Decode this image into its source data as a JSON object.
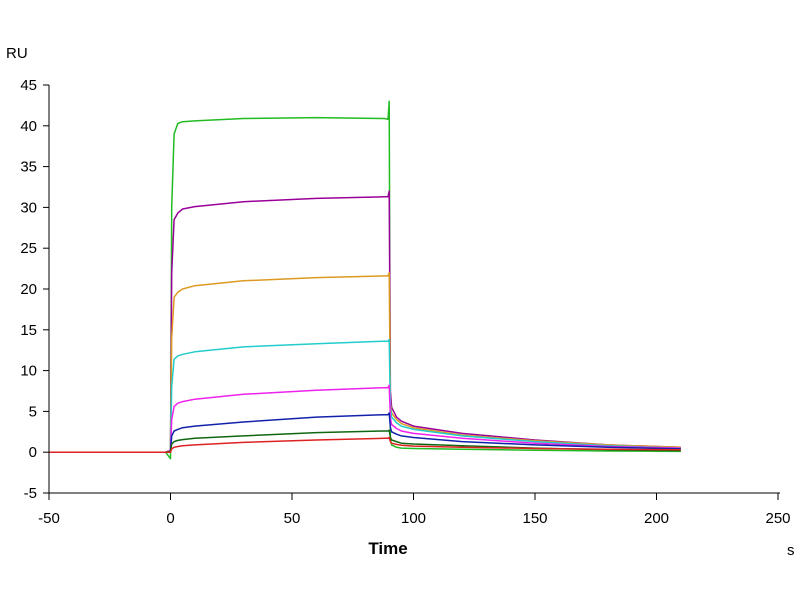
{
  "chart_data": {
    "type": "line",
    "title": "",
    "xlabel": "Time",
    "ylabel": "",
    "x_unit": "s",
    "y_unit": "RU",
    "xlim": [
      -50,
      250
    ],
    "ylim": [
      -5,
      45
    ],
    "xticks": [
      -50,
      0,
      50,
      100,
      150,
      200,
      250
    ],
    "yticks": [
      -5,
      0,
      5,
      10,
      15,
      20,
      25,
      30,
      35,
      40,
      45
    ],
    "grid": false,
    "legend": "none",
    "series": [
      {
        "color": "#22bb22",
        "x": [
          -50,
          -2,
          0,
          0.5,
          1.5,
          3,
          5,
          10,
          30,
          60,
          88,
          89.5,
          90,
          90.5,
          91,
          93,
          95,
          100,
          120,
          150,
          180,
          210
        ],
        "y": [
          0,
          0,
          -0.8,
          30,
          39,
          40.3,
          40.5,
          40.6,
          40.9,
          41,
          40.9,
          40.8,
          43,
          1.5,
          0.9,
          0.6,
          0.5,
          0.45,
          0.35,
          0.25,
          0.15,
          0.1
        ]
      },
      {
        "color": "#990099",
        "x": [
          -50,
          -2,
          0,
          0.5,
          1.5,
          3,
          5,
          10,
          30,
          60,
          88,
          89.5,
          90,
          90.5,
          91,
          93,
          95,
          100,
          120,
          150,
          180,
          210
        ],
        "y": [
          0,
          0,
          0.2,
          22,
          28.5,
          29.3,
          29.8,
          30.1,
          30.7,
          31.1,
          31.3,
          31.3,
          32,
          7.5,
          5.5,
          4.3,
          3.8,
          3.2,
          2.3,
          1.5,
          0.9,
          0.6
        ]
      },
      {
        "color": "#dd9922",
        "x": [
          -50,
          -2,
          0,
          0.5,
          1.5,
          3,
          5,
          10,
          30,
          60,
          88,
          89.5,
          90,
          90.5,
          91,
          93,
          95,
          100,
          120,
          150,
          180,
          210
        ],
        "y": [
          0,
          0,
          0.2,
          14,
          19,
          19.6,
          20,
          20.4,
          21,
          21.4,
          21.6,
          21.6,
          22,
          6,
          4.8,
          4,
          3.5,
          3,
          2.1,
          1.4,
          0.9,
          0.6
        ]
      },
      {
        "color": "#22cccc",
        "x": [
          -50,
          -2,
          0,
          0.5,
          1.5,
          3,
          5,
          10,
          30,
          60,
          88,
          89.5,
          90,
          90.5,
          91,
          93,
          95,
          100,
          120,
          150,
          180,
          210
        ],
        "y": [
          0,
          0,
          0.2,
          8,
          11.4,
          11.8,
          12,
          12.3,
          12.9,
          13.3,
          13.6,
          13.6,
          13.8,
          5.5,
          4.3,
          3.6,
          3.2,
          2.8,
          2,
          1.3,
          0.8,
          0.5
        ]
      },
      {
        "color": "#ee22ee",
        "x": [
          -50,
          -2,
          0,
          0.5,
          1.5,
          3,
          5,
          10,
          30,
          60,
          88,
          89.5,
          90,
          90.5,
          91,
          93,
          95,
          100,
          120,
          150,
          180,
          210
        ],
        "y": [
          0,
          0,
          0.2,
          4,
          5.6,
          6,
          6.2,
          6.5,
          7.1,
          7.6,
          7.9,
          7.9,
          8.2,
          4.2,
          3.4,
          2.9,
          2.6,
          2.3,
          1.7,
          1.1,
          0.7,
          0.5
        ]
      },
      {
        "color": "#1122aa",
        "x": [
          -50,
          -2,
          0,
          0.5,
          1.5,
          3,
          5,
          10,
          30,
          60,
          88,
          89.5,
          90,
          90.5,
          91,
          93,
          95,
          100,
          120,
          150,
          180,
          210
        ],
        "y": [
          0,
          0,
          0.1,
          2,
          2.6,
          2.8,
          3,
          3.2,
          3.7,
          4.3,
          4.6,
          4.6,
          4.8,
          3,
          2.5,
          2.2,
          2,
          1.8,
          1.3,
          0.9,
          0.6,
          0.4
        ]
      },
      {
        "color": "#116611",
        "x": [
          -50,
          -2,
          0,
          0.5,
          1.5,
          3,
          5,
          10,
          30,
          60,
          88,
          89.5,
          90,
          90.5,
          91,
          93,
          95,
          100,
          120,
          150,
          180,
          210
        ],
        "y": [
          0,
          0,
          0.1,
          1,
          1.3,
          1.45,
          1.55,
          1.7,
          2,
          2.4,
          2.6,
          2.6,
          2.7,
          1.8,
          1.5,
          1.3,
          1.1,
          1,
          0.8,
          0.5,
          0.3,
          0.2
        ]
      },
      {
        "color": "#dd2222",
        "x": [
          -50,
          -2,
          0,
          0.5,
          1.5,
          3,
          5,
          10,
          30,
          60,
          88,
          89.5,
          90,
          90.5,
          91,
          93,
          95,
          100,
          120,
          150,
          180,
          210
        ],
        "y": [
          0,
          0,
          0,
          0.4,
          0.6,
          0.7,
          0.8,
          0.9,
          1.2,
          1.5,
          1.7,
          1.7,
          1.8,
          1.3,
          1.1,
          0.95,
          0.85,
          0.75,
          0.6,
          0.45,
          0.35,
          0.3
        ]
      }
    ]
  }
}
